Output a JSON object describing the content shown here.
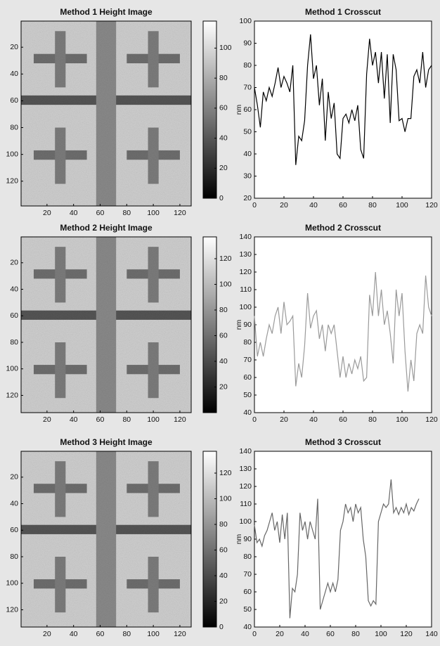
{
  "chart_data": [
    {
      "type": "image",
      "title": "Method 1 Height Image",
      "xlim": [
        0.5,
        128.5
      ],
      "ylim": [
        0.5,
        138.5
      ],
      "xticks": [
        20,
        40,
        60,
        80,
        100,
        120
      ],
      "yticks": [
        20,
        40,
        60,
        80,
        100,
        120
      ],
      "colorbar": {
        "lim": [
          0,
          118
        ],
        "ticks": [
          0,
          20,
          40,
          60,
          80,
          100
        ]
      }
    },
    {
      "type": "line",
      "title": "Method 1 Crosscut",
      "y_label": "nm",
      "xlim": [
        0,
        120
      ],
      "ylim": [
        20,
        100
      ],
      "xticks": [
        0,
        20,
        40,
        60,
        80,
        100,
        120
      ],
      "yticks": [
        20,
        30,
        40,
        50,
        60,
        70,
        80,
        90,
        100
      ],
      "x": [
        0,
        2,
        4,
        6,
        8,
        10,
        12,
        14,
        16,
        18,
        20,
        22,
        24,
        26,
        28,
        30,
        32,
        34,
        36,
        38,
        40,
        42,
        44,
        46,
        48,
        50,
        52,
        54,
        56,
        58,
        60,
        62,
        64,
        66,
        68,
        70,
        72,
        74,
        76,
        78,
        80,
        82,
        84,
        86,
        88,
        90,
        92,
        94,
        96,
        98,
        100,
        102,
        104,
        106,
        108,
        110,
        112,
        114,
        116,
        118,
        120
      ],
      "series": [
        {
          "color": "#000000",
          "values": [
            70,
            62,
            52,
            68,
            64,
            70,
            66,
            72,
            79,
            70,
            75,
            72,
            68,
            80,
            35,
            48,
            46,
            55,
            80,
            94,
            74,
            80,
            62,
            74,
            46,
            68,
            56,
            63,
            40,
            38,
            56,
            58,
            54,
            60,
            55,
            62,
            42,
            38,
            76,
            92,
            80,
            86,
            72,
            86,
            65,
            85,
            54,
            85,
            78,
            55,
            56,
            50,
            56,
            56,
            75,
            78,
            72,
            86,
            70,
            78,
            80
          ]
        }
      ]
    },
    {
      "type": "image",
      "title": "Method 2 Height Image",
      "xlim": [
        0.5,
        128.5
      ],
      "ylim": [
        0.5,
        133
      ],
      "xticks": [
        20,
        40,
        60,
        80,
        100,
        120
      ],
      "yticks": [
        20,
        40,
        60,
        80,
        100,
        120
      ],
      "colorbar": {
        "lim": [
          0,
          137
        ],
        "ticks": [
          20,
          40,
          60,
          80,
          100,
          120
        ]
      }
    },
    {
      "type": "line",
      "title": "Method 2 Crosscut",
      "y_label": "nm",
      "xlim": [
        0,
        120
      ],
      "ylim": [
        40,
        140
      ],
      "xticks": [
        0,
        20,
        40,
        60,
        80,
        100,
        120
      ],
      "yticks": [
        40,
        50,
        60,
        70,
        80,
        90,
        100,
        110,
        120,
        130,
        140
      ],
      "x": [
        0,
        2,
        4,
        6,
        8,
        10,
        12,
        14,
        16,
        18,
        20,
        22,
        24,
        26,
        28,
        30,
        32,
        34,
        36,
        38,
        40,
        42,
        44,
        46,
        48,
        50,
        52,
        54,
        56,
        58,
        60,
        62,
        64,
        66,
        68,
        70,
        72,
        74,
        76,
        78,
        80,
        82,
        84,
        86,
        88,
        90,
        92,
        94,
        96,
        98,
        100,
        102,
        104,
        106,
        108,
        110,
        112,
        114,
        116,
        118,
        120
      ],
      "series": [
        {
          "color": "#9a9a9a",
          "values": [
            95,
            72,
            80,
            72,
            82,
            90,
            85,
            95,
            100,
            85,
            103,
            90,
            92,
            95,
            55,
            68,
            60,
            78,
            108,
            88,
            95,
            98,
            82,
            90,
            75,
            90,
            85,
            90,
            75,
            60,
            72,
            60,
            68,
            62,
            70,
            65,
            72,
            58,
            60,
            107,
            95,
            120,
            95,
            110,
            90,
            98,
            85,
            68,
            110,
            95,
            108,
            75,
            52,
            70,
            58,
            85,
            90,
            85,
            118,
            100,
            95
          ]
        }
      ]
    },
    {
      "type": "image",
      "title": "Method 3 Height Image",
      "xlim": [
        0.5,
        128.5
      ],
      "ylim": [
        0.5,
        133
      ],
      "xticks": [
        20,
        40,
        60,
        80,
        100,
        120
      ],
      "yticks": [
        20,
        40,
        60,
        80,
        100,
        120
      ],
      "colorbar": {
        "lim": [
          0,
          137
        ],
        "ticks": [
          0,
          20,
          40,
          60,
          80,
          100,
          120
        ]
      }
    },
    {
      "type": "line",
      "title": "Method 3 Crosscut",
      "y_label": "nm",
      "xlim": [
        0,
        140
      ],
      "ylim": [
        40,
        140
      ],
      "xticks": [
        0,
        20,
        40,
        60,
        80,
        100,
        120,
        140
      ],
      "yticks": [
        40,
        50,
        60,
        70,
        80,
        90,
        100,
        110,
        120,
        130,
        140
      ],
      "x": [
        0,
        2,
        4,
        6,
        8,
        10,
        12,
        14,
        16,
        18,
        20,
        22,
        24,
        26,
        28,
        30,
        32,
        34,
        36,
        38,
        40,
        42,
        44,
        46,
        48,
        50,
        52,
        54,
        56,
        58,
        60,
        62,
        64,
        66,
        68,
        70,
        72,
        74,
        76,
        78,
        80,
        82,
        84,
        86,
        88,
        90,
        92,
        94,
        96,
        98,
        100,
        102,
        104,
        106,
        108,
        110,
        112,
        114,
        116,
        118,
        120,
        122,
        124,
        126,
        128,
        130
      ],
      "series": [
        {
          "color": "#666666",
          "values": [
            98,
            88,
            90,
            86,
            92,
            95,
            100,
            105,
            95,
            100,
            88,
            104,
            90,
            105,
            45,
            62,
            60,
            70,
            105,
            95,
            100,
            90,
            100,
            95,
            90,
            113,
            50,
            55,
            60,
            65,
            60,
            65,
            60,
            67,
            95,
            100,
            110,
            105,
            108,
            100,
            110,
            105,
            108,
            90,
            80,
            55,
            52,
            55,
            53,
            100,
            105,
            110,
            108,
            110,
            124,
            105,
            108,
            104,
            108,
            105,
            110,
            104,
            108,
            106,
            110,
            113
          ]
        }
      ]
    }
  ]
}
